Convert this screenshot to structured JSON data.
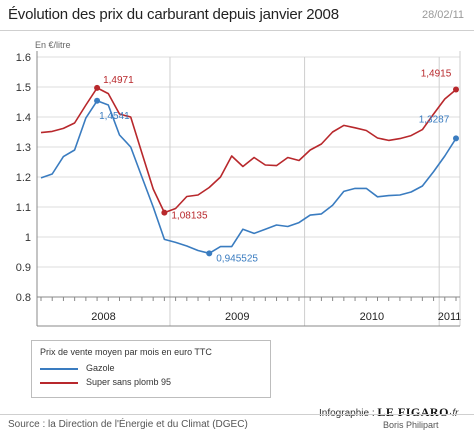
{
  "header": {
    "title": "Évolution des prix du carburant depuis janvier 2008",
    "date": "28/02/11"
  },
  "legend": {
    "title": "Prix de vente moyen par mois en euro TTC",
    "items": [
      {
        "label": "Gazole",
        "color": "#3a7cc0"
      },
      {
        "label": "Super sans plomb 95",
        "color": "#b8282c"
      }
    ]
  },
  "credits": {
    "infographie": "Infographie :",
    "brand": "LE FIGARO",
    "brand_suffix": "·fr",
    "author": "Boris Philipart"
  },
  "source": "Source : la Direction de l'Énergie et du Climat (DGEC)",
  "chart_data": {
    "type": "line",
    "ylabel": "En €/litre",
    "ylim": [
      0.8,
      1.6
    ],
    "yticks": [
      0.8,
      0.9,
      1.0,
      1.1,
      1.2,
      1.3,
      1.4,
      1.5,
      1.6
    ],
    "ytick_labels": [
      "0.8",
      "0.9",
      "1",
      "1.1",
      "1.2",
      "1.3",
      "1.4",
      "1.5",
      "1.6"
    ],
    "x_months": [
      "2008-01",
      "2008-02",
      "2008-03",
      "2008-04",
      "2008-05",
      "2008-06",
      "2008-07",
      "2008-08",
      "2008-09",
      "2008-10",
      "2008-11",
      "2008-12",
      "2009-01",
      "2009-02",
      "2009-03",
      "2009-04",
      "2009-05",
      "2009-06",
      "2009-07",
      "2009-08",
      "2009-09",
      "2009-10",
      "2009-11",
      "2009-12",
      "2010-01",
      "2010-02",
      "2010-03",
      "2010-04",
      "2010-05",
      "2010-06",
      "2010-07",
      "2010-08",
      "2010-09",
      "2010-10",
      "2010-11",
      "2010-12",
      "2011-01",
      "2011-02"
    ],
    "year_labels": [
      {
        "label": "2008",
        "from": "2008-01",
        "to": "2008-12"
      },
      {
        "label": "2009",
        "from": "2009-01",
        "to": "2009-12"
      },
      {
        "label": "2010",
        "from": "2010-01",
        "to": "2010-12"
      },
      {
        "label": "2011",
        "from": "2011-01",
        "to": "2011-02"
      }
    ],
    "grid": true,
    "series": [
      {
        "name": "Gazole",
        "color": "#3a7cc0",
        "values": [
          1.197,
          1.21,
          1.268,
          1.29,
          1.397,
          1.4541,
          1.44,
          1.34,
          1.3,
          1.2,
          1.1,
          0.992,
          0.982,
          0.97,
          0.955,
          0.945525,
          0.968,
          0.968,
          1.026,
          1.012,
          1.026,
          1.04,
          1.035,
          1.048,
          1.073,
          1.077,
          1.106,
          1.152,
          1.162,
          1.162,
          1.134,
          1.138,
          1.14,
          1.15,
          1.17,
          1.218,
          1.27,
          1.3287
        ]
      },
      {
        "name": "Super sans plomb 95",
        "color": "#b8282c",
        "values": [
          1.348,
          1.352,
          1.362,
          1.38,
          1.44,
          1.4971,
          1.478,
          1.41,
          1.4,
          1.28,
          1.16,
          1.08135,
          1.095,
          1.135,
          1.14,
          1.165,
          1.2,
          1.27,
          1.235,
          1.265,
          1.24,
          1.238,
          1.265,
          1.255,
          1.29,
          1.31,
          1.35,
          1.372,
          1.364,
          1.355,
          1.33,
          1.322,
          1.328,
          1.338,
          1.358,
          1.41,
          1.46,
          1.4915
        ]
      }
    ],
    "annotations": [
      {
        "series": 0,
        "index": 5,
        "label": "1,4541"
      },
      {
        "series": 0,
        "index": 15,
        "label": "0,945525"
      },
      {
        "series": 0,
        "index": 37,
        "label": "1,3287"
      },
      {
        "series": 1,
        "index": 5,
        "label": "1,4971"
      },
      {
        "series": 1,
        "index": 11,
        "label": "1,08135"
      },
      {
        "series": 1,
        "index": 37,
        "label": "1,4915"
      }
    ]
  }
}
